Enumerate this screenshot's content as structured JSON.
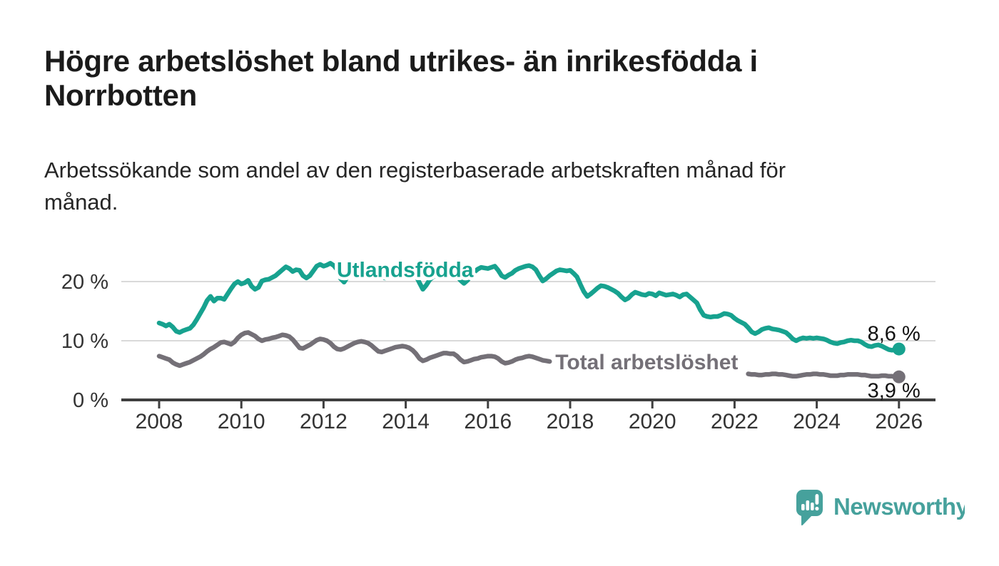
{
  "header": {
    "title": "Högre arbetslöshet bland utrikes- än inrikesfödda i Norrbotten",
    "subtitle": "Arbetssökande som andel av den registerbaserade arbetskraften månad för månad."
  },
  "footer": {
    "brand": "Newsworthy"
  },
  "colors": {
    "teal_line": "#17a28f",
    "gray_line": "#747077",
    "axis": "#3f3f3f",
    "grid": "#d9d9d9",
    "tick_label": "#333333",
    "end_label": "#111111",
    "logo_teal": "#46a19c"
  },
  "chart_data": {
    "type": "line",
    "title": "Högre arbetslöshet bland utrikes- än inrikesfödda i Norrbotten",
    "subtitle": "Arbetssökande som andel av den registerbaserade arbetskraften månad för månad.",
    "unit": "%",
    "xlim": [
      2007.1,
      2026.9
    ],
    "ylim": [
      0,
      24
    ],
    "grid": "horizontal",
    "legend_position": "inline-labels",
    "x_ticks": [
      2008,
      2010,
      2012,
      2014,
      2016,
      2018,
      2020,
      2022,
      2024,
      2026
    ],
    "y_ticks": [
      {
        "value": 0,
        "label": "0 %"
      },
      {
        "value": 10,
        "label": "10 %"
      },
      {
        "value": 20,
        "label": "20 %"
      }
    ],
    "series": [
      {
        "name": "Utlandsfödda",
        "color": "#17a28f",
        "inline_label": {
          "text": "Utlandsfödda",
          "x": 2012.32,
          "y": 20.8
        },
        "end_label": "8,6 %",
        "end_value": 8.6,
        "segments": [
          {
            "start_year": 2008.0,
            "step_months": 1,
            "values": [
              13.0,
              12.8,
              12.5,
              12.8,
              12.3,
              11.6,
              11.4,
              11.7,
              11.9,
              12.1,
              12.7,
              13.6,
              14.6,
              15.6,
              16.8,
              17.5,
              16.7,
              17.2,
              17.2,
              17.0,
              17.9,
              18.8,
              19.6,
              20.0,
              19.6,
              19.8,
              20.2,
              19.2,
              18.7,
              19.0,
              20.1,
              20.3,
              20.4,
              20.7,
              21.0,
              21.5,
              22.0,
              22.5,
              22.2,
              21.7,
              22.0,
              21.9,
              21.0,
              20.6,
              21.0,
              21.8,
              22.6,
              22.9,
              22.6,
              22.8,
              23.1,
              22.7,
              22.0,
              20.5,
              19.9,
              20.8,
              21.5,
              21.9,
              22.1,
              22.4,
              22.6,
              22.5,
              22.2,
              21.8,
              21.3,
              20.8,
              20.6,
              21.0,
              21.4,
              21.8,
              22.0,
              22.2,
              22.0,
              21.8,
              21.5,
              21.0,
              19.8,
              18.7,
              19.4,
              20.3,
              20.8,
              21.1,
              21.4,
              21.6,
              21.7,
              21.5,
              21.3,
              20.9,
              20.2,
              19.7,
              20.2,
              20.9,
              21.6,
              22.1,
              22.4,
              22.3,
              22.2,
              22.4,
              22.6,
              21.9,
              21.0,
              20.7,
              21.1,
              21.4,
              21.9,
              22.2,
              22.4,
              22.6,
              22.7,
              22.5,
              22.0,
              21.0,
              20.1,
              20.5,
              21.0,
              21.4,
              21.8,
              22.0,
              21.9,
              21.8,
              21.9,
              21.4,
              20.8,
              19.5,
              18.3,
              17.5,
              17.9,
              18.4,
              18.9,
              19.3,
              19.2,
              19.0,
              18.7,
              18.4,
              18.0,
              17.4,
              16.9,
              17.2,
              17.8,
              18.2,
              18.0,
              17.8,
              17.7,
              18.0,
              17.9,
              17.6,
              18.1,
              17.9,
              17.7,
              17.8,
              17.9,
              17.7,
              17.4,
              17.8,
              17.9,
              17.4,
              16.9,
              16.4,
              15.2,
              14.3,
              14.1,
              14.0,
              14.1,
              14.1,
              14.3,
              14.6,
              14.5,
              14.3,
              13.8,
              13.4,
              13.1,
              12.8,
              12.2,
              11.5,
              11.2,
              11.5,
              11.9,
              12.1,
              12.2,
              12.0,
              11.9,
              11.8,
              11.6,
              11.4,
              10.9,
              10.3,
              10.0,
              10.3,
              10.5,
              10.4,
              10.5,
              10.4,
              10.5,
              10.4,
              10.3,
              10.1,
              9.8,
              9.6,
              9.5,
              9.7,
              9.8,
              10.0,
              10.1,
              10.0,
              10.0,
              9.8,
              9.4,
              9.1,
              9.0,
              9.2,
              9.3,
              9.1,
              8.8,
              8.5,
              8.4,
              8.5,
              8.6
            ]
          }
        ]
      },
      {
        "name": "Total arbetslöshet",
        "color": "#747077",
        "inline_label": {
          "text": "Total arbetslöshet",
          "x": 2017.64,
          "y": 5.2
        },
        "end_label": "3,9 %",
        "end_value": 3.9,
        "segments": [
          {
            "start_year": 2008.0,
            "step_months": 1,
            "values": [
              7.4,
              7.2,
              7.0,
              6.8,
              6.3,
              6.0,
              5.8,
              6.0,
              6.2,
              6.4,
              6.7,
              7.0,
              7.3,
              7.7,
              8.2,
              8.6,
              8.9,
              9.3,
              9.7,
              9.8,
              9.6,
              9.4,
              9.8,
              10.5,
              11.0,
              11.3,
              11.4,
              11.1,
              10.8,
              10.3,
              10.0,
              10.2,
              10.3,
              10.5,
              10.6,
              10.8,
              11.0,
              10.9,
              10.7,
              10.2,
              9.5,
              8.8,
              8.7,
              9.0,
              9.3,
              9.7,
              10.1,
              10.3,
              10.2,
              10.0,
              9.6,
              9.0,
              8.6,
              8.5,
              8.7,
              9.0,
              9.3,
              9.6,
              9.8,
              9.9,
              9.8,
              9.6,
              9.2,
              8.7,
              8.2,
              8.1,
              8.3,
              8.5,
              8.7,
              8.9,
              9.0,
              9.1,
              9.0,
              8.8,
              8.4,
              7.8,
              7.0,
              6.6,
              6.8,
              7.1,
              7.3,
              7.5,
              7.7,
              7.9,
              7.9,
              7.8,
              7.8,
              7.4,
              6.8,
              6.4,
              6.5,
              6.7,
              6.9,
              7.0,
              7.2,
              7.3,
              7.4,
              7.4,
              7.3,
              7.0,
              6.5,
              6.2,
              6.3,
              6.5,
              6.8,
              7.0,
              7.1,
              7.3,
              7.4,
              7.3,
              7.1,
              6.9,
              6.7,
              6.6,
              6.5
            ]
          },
          {
            "start_year": 2022.333,
            "step_months": 1,
            "values": [
              4.4,
              4.3,
              4.3,
              4.2,
              4.2,
              4.3,
              4.3,
              4.4,
              4.4,
              4.3,
              4.3,
              4.2,
              4.1,
              4.0,
              4.0,
              4.1,
              4.2,
              4.3,
              4.3,
              4.4,
              4.4,
              4.3,
              4.3,
              4.2,
              4.1,
              4.1,
              4.1,
              4.2,
              4.2,
              4.3,
              4.3,
              4.3,
              4.3,
              4.2,
              4.2,
              4.1,
              4.0,
              4.0,
              4.0,
              4.1,
              4.1,
              4.0,
              4.0,
              3.9,
              3.9
            ]
          }
        ]
      }
    ]
  }
}
